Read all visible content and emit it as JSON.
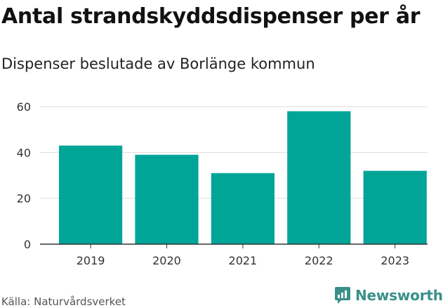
{
  "header": {
    "title": "Antal strandskyddsdispenser per år",
    "subtitle": "Dispenser beslutade av Borlänge kommun"
  },
  "footer": {
    "source": "Källa: Naturvårdsverket",
    "brand": "Newsworthy",
    "brand_color": "#3a8f8a"
  },
  "chart_data": {
    "type": "bar",
    "title": "Antal strandskyddsdispenser per år",
    "subtitle": "Dispenser beslutade av Borlänge kommun",
    "categories": [
      "2019",
      "2020",
      "2021",
      "2022",
      "2023"
    ],
    "values": [
      43,
      39,
      31,
      58,
      32
    ],
    "xlabel": "",
    "ylabel": "",
    "ylim": [
      0,
      60
    ],
    "yticks": [
      0,
      20,
      40,
      60
    ],
    "grid": true,
    "bar_color": "#00a598"
  }
}
